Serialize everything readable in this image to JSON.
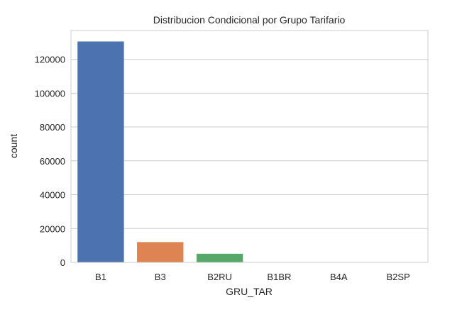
{
  "chart_data": {
    "type": "bar",
    "title": "Distribucion Condicional por Grupo Tarifario",
    "xlabel": "GRU_TAR",
    "ylabel": "count",
    "categories": [
      "B1",
      "B3",
      "B2RU",
      "B1BR",
      "B4A",
      "B2SP"
    ],
    "values": [
      130500,
      12000,
      5100,
      150,
      60,
      30
    ],
    "colors": [
      "#4c72b0",
      "#dd8452",
      "#55a868",
      "#c44e52",
      "#8172b3",
      "#937860"
    ],
    "ylim": [
      0,
      137000
    ],
    "yticks": [
      0,
      20000,
      40000,
      60000,
      80000,
      100000,
      120000
    ],
    "ytick_labels": [
      "0",
      "20000",
      "40000",
      "60000",
      "80000",
      "100000",
      "120000"
    ],
    "grid": "y",
    "legend": "none"
  }
}
